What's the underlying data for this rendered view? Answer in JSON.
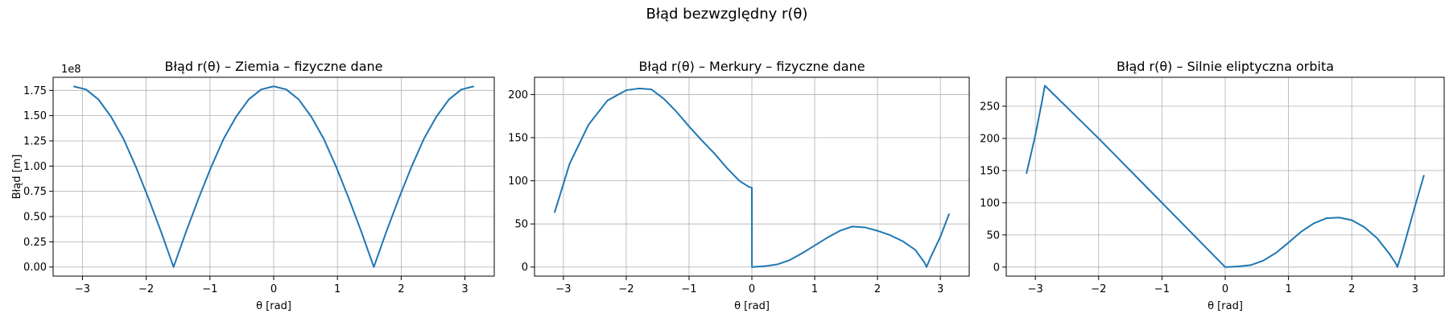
{
  "suptitle": "Błąd bezwzględny r(θ)",
  "chart_data": [
    {
      "type": "line",
      "title": "Błąd r(θ) – Ziemia – fizyczne dane",
      "xlabel": "θ [rad]",
      "ylabel": "Błąd [m]",
      "y_offset_label": "1e8",
      "xlim": [
        -3.46,
        3.46
      ],
      "ylim": [
        -0.09,
        1.88
      ],
      "xticks": [
        -3,
        -2,
        -1,
        0,
        1,
        2,
        3
      ],
      "xtick_labels": [
        "−3",
        "−2",
        "−1",
        "0",
        "1",
        "2",
        "3"
      ],
      "yticks": [
        0,
        0.25,
        0.5,
        0.75,
        1.0,
        1.25,
        1.5,
        1.75
      ],
      "ytick_labels": [
        "0.00",
        "0.25",
        "0.50",
        "0.75",
        "1.00",
        "1.25",
        "1.50",
        "1.75"
      ],
      "grid": true,
      "color": "#1f77b4",
      "series": [
        {
          "x": [
            -3.1416,
            -2.9452,
            -2.7489,
            -2.5525,
            -2.3562,
            -2.1598,
            -1.9635,
            -1.7671,
            -1.5708,
            -1.3744,
            -1.1781,
            -0.9817,
            -0.7854,
            -0.589,
            -0.3927,
            -0.1963,
            0.0,
            0.1963,
            0.3927,
            0.589,
            0.7854,
            0.9817,
            1.1781,
            1.3744,
            1.5708,
            1.7671,
            1.9635,
            2.1598,
            2.3562,
            2.5525,
            2.7489,
            2.9452,
            3.1416
          ],
          "y": [
            1.79,
            1.76,
            1.66,
            1.49,
            1.27,
            0.99,
            0.68,
            0.35,
            0.0,
            0.35,
            0.68,
            0.99,
            1.27,
            1.49,
            1.66,
            1.76,
            1.79,
            1.76,
            1.66,
            1.49,
            1.27,
            0.99,
            0.68,
            0.35,
            0.0,
            0.35,
            0.68,
            0.99,
            1.27,
            1.49,
            1.66,
            1.76,
            1.79
          ]
        }
      ]
    },
    {
      "type": "line",
      "title": "Błąd r(θ) – Merkury – fizyczne dane",
      "xlabel": "θ [rad]",
      "ylabel": "",
      "xlim": [
        -3.46,
        3.46
      ],
      "ylim": [
        -10.5,
        220
      ],
      "xticks": [
        -3,
        -2,
        -1,
        0,
        1,
        2,
        3
      ],
      "xtick_labels": [
        "−3",
        "−2",
        "−1",
        "0",
        "1",
        "2",
        "3"
      ],
      "yticks": [
        0,
        50,
        100,
        150,
        200
      ],
      "ytick_labels": [
        "0",
        "50",
        "100",
        "150",
        "200"
      ],
      "grid": true,
      "color": "#1f77b4",
      "series": [
        {
          "x": [
            -3.1416,
            -2.9,
            -2.6,
            -2.3,
            -2.0,
            -1.8,
            -1.6,
            -1.4,
            -1.2,
            -1.0,
            -0.8,
            -0.6,
            -0.4,
            -0.2,
            -0.05,
            0.0,
            0.001,
            0.2,
            0.4,
            0.6,
            0.8,
            1.0,
            1.2,
            1.4,
            1.6,
            1.8,
            2.0,
            2.2,
            2.4,
            2.6,
            2.75,
            2.78,
            2.85,
            3.0,
            3.1416
          ],
          "y": [
            63,
            120,
            165,
            193,
            205,
            207,
            206,
            195,
            180,
            163,
            147,
            132,
            115,
            100,
            93,
            92,
            0,
            1,
            3,
            8,
            16,
            25,
            34,
            42,
            47,
            46,
            42,
            37,
            30,
            20,
            5,
            0,
            12,
            35,
            62
          ]
        }
      ]
    },
    {
      "type": "line",
      "title": "Błąd r(θ) – Silnie eliptyczna orbita",
      "xlabel": "θ [rad]",
      "ylabel": "",
      "xlim": [
        -3.46,
        3.46
      ],
      "ylim": [
        -14,
        295
      ],
      "xticks": [
        -3,
        -2,
        -1,
        0,
        1,
        2,
        3
      ],
      "xtick_labels": [
        "−3",
        "−2",
        "−1",
        "0",
        "1",
        "2",
        "3"
      ],
      "yticks": [
        0,
        50,
        100,
        150,
        200,
        250
      ],
      "ytick_labels": [
        "0",
        "50",
        "100",
        "150",
        "200",
        "250"
      ],
      "grid": true,
      "color": "#1f77b4",
      "series": [
        {
          "x": [
            -3.1416,
            -3.0,
            -2.9,
            -2.85,
            -2.0,
            -1.0,
            0.0,
            0.2,
            0.4,
            0.6,
            0.8,
            1.0,
            1.2,
            1.4,
            1.6,
            1.8,
            2.0,
            2.2,
            2.4,
            2.6,
            2.7,
            2.72,
            2.8,
            2.9,
            3.0,
            3.1416
          ],
          "y": [
            145,
            205,
            255,
            282,
            200,
            100,
            0,
            1,
            3,
            10,
            22,
            38,
            55,
            68,
            76,
            77,
            73,
            62,
            45,
            20,
            5,
            0,
            25,
            60,
            95,
            143
          ]
        }
      ]
    }
  ]
}
